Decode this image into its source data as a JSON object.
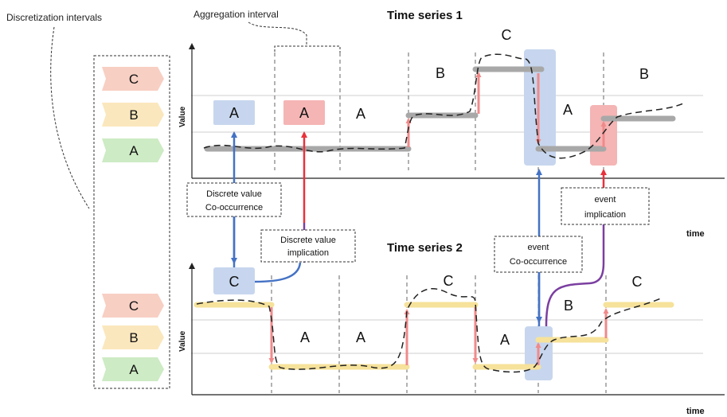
{
  "labels": {
    "discretization_intervals": "Discretization intervals",
    "aggregation_interval": "Aggregation interval",
    "ts1_title": "Time series 1",
    "ts2_title": "Time series 2",
    "value": "Value",
    "time": "time"
  },
  "legend_chevrons": [
    {
      "letter": "C",
      "color": "#f8cfc3"
    },
    {
      "letter": "B",
      "color": "#fbe7bd"
    },
    {
      "letter": "A",
      "color": "#cdebc4"
    }
  ],
  "ts1_segment_labels": [
    "A",
    "A",
    "A",
    "B",
    "C",
    "A",
    "B"
  ],
  "ts2_segment_labels": [
    "C",
    "A",
    "A",
    "C",
    "A",
    "B",
    "C"
  ],
  "callouts": {
    "discrete_cooccurrence": [
      "Discrete value",
      "Co-occurrence"
    ],
    "discrete_implication": [
      "Discrete value",
      "implication"
    ],
    "event_cooccurrence": [
      "event",
      "Co-occurrence"
    ],
    "event_implication": [
      "event",
      "implication"
    ]
  },
  "colors": {
    "blue_highlight": "#c7d6ee",
    "red_highlight": "#f5b5b5",
    "ts1_level": "#a8a8a8",
    "ts2_level": "#f6e29a",
    "blue_arrow": "#4472c4",
    "red_arrow": "#e8323c",
    "purple_link": "#7b3fa0",
    "pink_jump": "#f08a8a"
  }
}
